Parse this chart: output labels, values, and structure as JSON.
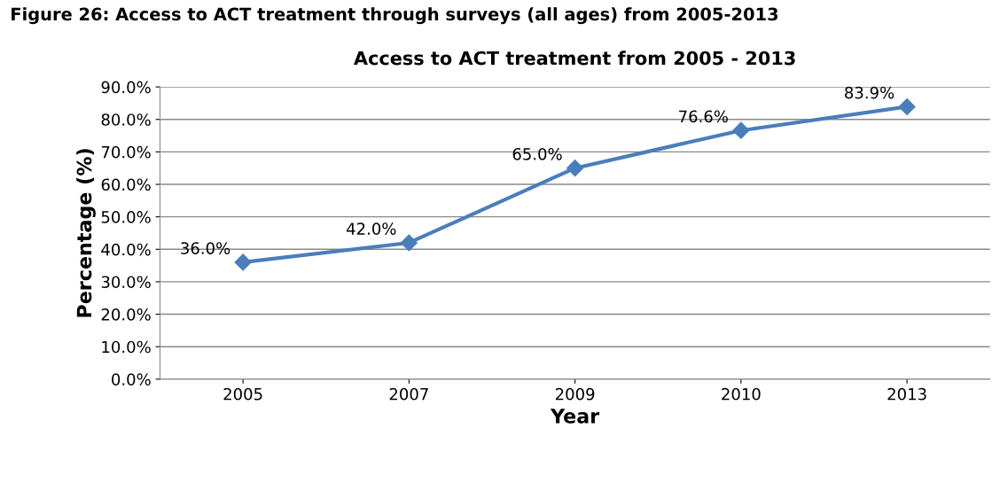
{
  "chart_data": {
    "type": "line",
    "title": "Access to ACT treatment from 2005 - 2013",
    "xlabel": "Year",
    "ylabel": "Percentage (%)",
    "annotations": [
      "Figure 26: Access to ACT treatment through surveys (all ages) from 2005-2013"
    ],
    "categories": [
      "2005",
      "2007",
      "2009",
      "2010",
      "2013"
    ],
    "series": [
      {
        "color": "#4a7ebb",
        "values": [
          36.0,
          42.0,
          65.0,
          76.6,
          83.9
        ],
        "value_labels": [
          "36.0%",
          "42.0%",
          "65.0%",
          "76.6%",
          "83.9%"
        ]
      }
    ],
    "ylim": [
      0,
      90
    ],
    "yticks": [
      {
        "value": 0,
        "label": "0.0%"
      },
      {
        "value": 10,
        "label": "10.0%"
      },
      {
        "value": 20,
        "label": "20.0%"
      },
      {
        "value": 30,
        "label": "30.0%"
      },
      {
        "value": 40,
        "label": "40.0%"
      },
      {
        "value": 50,
        "label": "50.0%"
      },
      {
        "value": 60,
        "label": "60.0%"
      },
      {
        "value": 70,
        "label": "70.0%"
      },
      {
        "value": 80,
        "label": "80.0%"
      },
      {
        "value": 90,
        "label": "90.0%"
      }
    ],
    "grid": "y",
    "marker": "diamond",
    "line_style": "solid",
    "legend": false
  }
}
